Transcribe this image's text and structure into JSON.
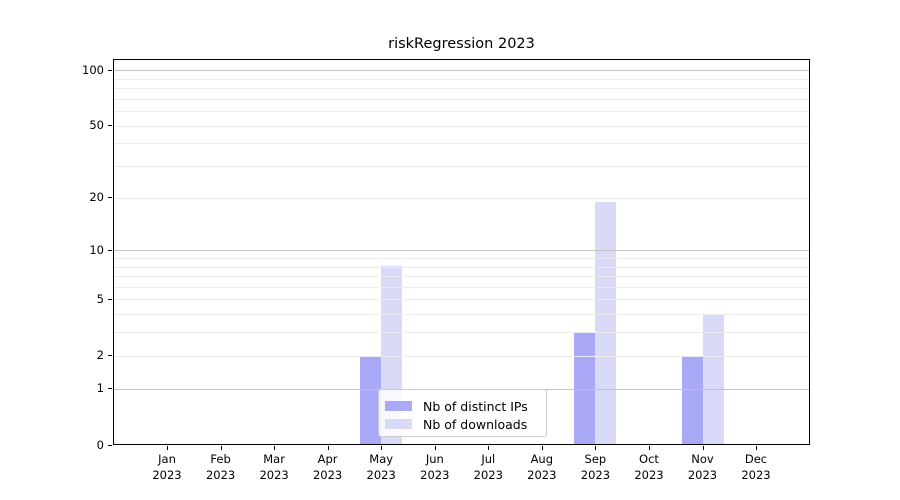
{
  "chart_data": {
    "type": "bar",
    "title": "riskRegression 2023",
    "categories": [
      "Jan 2023",
      "Feb 2023",
      "Mar 2023",
      "Apr 2023",
      "May 2023",
      "Jun 2023",
      "Jul 2023",
      "Aug 2023",
      "Sep 2023",
      "Oct 2023",
      "Nov 2023",
      "Dec 2023"
    ],
    "series": [
      {
        "name": "Nb of distinct IPs",
        "color": "#a9a9f7",
        "values": [
          0,
          0,
          0,
          0,
          2,
          0,
          0,
          0,
          3,
          0,
          2,
          0
        ]
      },
      {
        "name": "Nb of downloads",
        "color": "#d9d9f8",
        "values": [
          0,
          0,
          0,
          0,
          8,
          0,
          0,
          0,
          19,
          0,
          4,
          0
        ]
      }
    ],
    "xlabel": "",
    "ylabel": "",
    "y_scale": "log10(1+x)",
    "y_ticks": [
      0,
      1,
      2,
      5,
      10,
      20,
      50,
      100
    ],
    "y_major_gridlines": [
      1,
      10,
      100
    ],
    "y_minor_gridlines": [
      2,
      3,
      4,
      5,
      6,
      7,
      8,
      9,
      20,
      30,
      40,
      50,
      60,
      70,
      80,
      90
    ],
    "ylim": [
      0,
      115
    ],
    "grid": true,
    "legend_position": "lower-center-inside"
  },
  "colors": {
    "bar_distinct_ips": "#a9a9f7",
    "bar_downloads": "#d9d9f8",
    "grid_minor": "#ececec",
    "grid_major": "#c2c2c2",
    "axis": "#000000",
    "background": "#ffffff"
  }
}
